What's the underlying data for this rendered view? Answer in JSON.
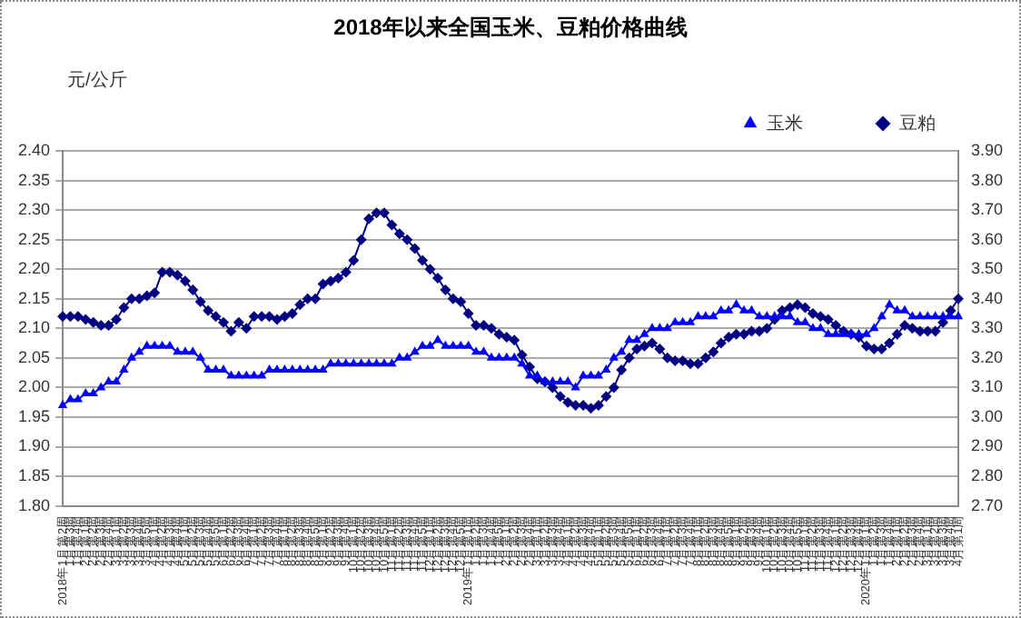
{
  "chart_data": {
    "type": "line",
    "title": "2018年以来全国玉米、豆粕价格曲线",
    "ylabel": "元/公斤",
    "categories": [
      "2018年1月第2周",
      "1月第3周",
      "1月第4周",
      "2月第1周",
      "2月第2周",
      "2月第3周",
      "2月第4周",
      "3月第1周",
      "3月第2周",
      "3月第3周",
      "3月第4周",
      "3月第5周",
      "4月第1周",
      "4月第2周",
      "4月第3周",
      "4月第4周",
      "5月第1周",
      "5月第2周",
      "5月第3周",
      "5月第4周",
      "5月第5周",
      "6月第1周",
      "6月第2周",
      "6月第3周",
      "6月第4周",
      "7月第1周",
      "7月第2周",
      "7月第3周",
      "7月第4周",
      "8月第1周",
      "8月第2周",
      "8月第3周",
      "8月第4周",
      "8月第5周",
      "9月第1周",
      "9月第2周",
      "9月第3周",
      "9月第4周",
      "10月第1周",
      "10月第2周",
      "10月第3周",
      "10月第4周",
      "10月第5周",
      "11月第1周",
      "11月第2周",
      "11月第3周",
      "11月第4周",
      "11月第5周",
      "12月第1周",
      "12月第2周",
      "12月第3周",
      "12月第4周",
      "12月第5周",
      "2019年1月第1周",
      "1月第2周",
      "1月第3周",
      "1月第4周",
      "1月第5周",
      "2月第1周",
      "2月第2周",
      "2月第3周",
      "2月第4周",
      "3月第1周",
      "3月第2周",
      "3月第3周",
      "3月第4周",
      "4月第1周",
      "4月第2周",
      "4月第3周",
      "4月第4周",
      "5月第1周",
      "5月第2周",
      "5月第3周",
      "5月第4周",
      "5月第5周",
      "6月第1周",
      "6月第2周",
      "6月第3周",
      "6月第4周",
      "7月第1周",
      "7月第2周",
      "7月第3周",
      "7月第4周",
      "8月第1周",
      "8月第2周",
      "8月第3周",
      "8月第4周",
      "8月第5周",
      "9月第1周",
      "9月第2周",
      "9月第3周",
      "9月第4周",
      "10月第1周",
      "10月第2周",
      "10月第3周",
      "10月第4周",
      "10月第5周",
      "11月第1周",
      "11月第2周",
      "11月第3周",
      "11月第4周",
      "12月第1周",
      "12月第2周",
      "12月第3周",
      "12月第4周",
      "2020年1月第1周",
      "1月第2周",
      "1月第3周",
      "1月第4周",
      "2月第1周",
      "2月第2周",
      "2月第3周",
      "2月第4周",
      "3月第1周",
      "3月第2周",
      "3月第3周",
      "3月第4周",
      "4月第1周"
    ],
    "series": [
      {
        "name": "玉米",
        "color": "#0000ff",
        "marker": "triangle",
        "values": [
          1.97,
          1.98,
          1.98,
          1.99,
          1.99,
          2.0,
          2.01,
          2.01,
          2.03,
          2.05,
          2.06,
          2.07,
          2.07,
          2.07,
          2.07,
          2.06,
          2.06,
          2.06,
          2.05,
          2.03,
          2.03,
          2.03,
          2.02,
          2.02,
          2.02,
          2.02,
          2.02,
          2.03,
          2.03,
          2.03,
          2.03,
          2.03,
          2.03,
          2.03,
          2.03,
          2.04,
          2.04,
          2.04,
          2.04,
          2.04,
          2.04,
          2.04,
          2.04,
          2.04,
          2.05,
          2.05,
          2.06,
          2.07,
          2.07,
          2.08,
          2.07,
          2.07,
          2.07,
          2.07,
          2.06,
          2.06,
          2.05,
          2.05,
          2.05,
          2.05,
          2.04,
          2.02,
          2.02,
          2.01,
          2.01,
          2.01,
          2.01,
          2.0,
          2.02,
          2.02,
          2.02,
          2.03,
          2.05,
          2.06,
          2.08,
          2.08,
          2.09,
          2.1,
          2.1,
          2.1,
          2.11,
          2.11,
          2.11,
          2.12,
          2.12,
          2.12,
          2.13,
          2.13,
          2.14,
          2.13,
          2.13,
          2.12,
          2.12,
          2.12,
          2.12,
          2.12,
          2.11,
          2.11,
          2.1,
          2.1,
          2.09,
          2.09,
          2.09,
          2.09,
          2.09,
          2.09,
          2.1,
          2.12,
          2.14,
          2.13,
          2.13,
          2.12,
          2.12,
          2.12,
          2.12,
          2.12,
          2.12,
          2.12
        ]
      },
      {
        "name": "豆粕",
        "color": "#000080",
        "marker": "diamond",
        "axis": "y2",
        "values": [
          3.34,
          3.34,
          3.34,
          3.33,
          3.32,
          3.31,
          3.31,
          3.33,
          3.37,
          3.4,
          3.4,
          3.41,
          3.42,
          3.49,
          3.49,
          3.48,
          3.46,
          3.43,
          3.39,
          3.36,
          3.34,
          3.32,
          3.29,
          3.32,
          3.3,
          3.34,
          3.34,
          3.34,
          3.33,
          3.34,
          3.35,
          3.38,
          3.4,
          3.4,
          3.45,
          3.46,
          3.47,
          3.49,
          3.53,
          3.6,
          3.67,
          3.69,
          3.69,
          3.65,
          3.62,
          3.6,
          3.57,
          3.53,
          3.5,
          3.47,
          3.43,
          3.4,
          3.39,
          3.35,
          3.31,
          3.31,
          3.3,
          3.28,
          3.27,
          3.26,
          3.21,
          3.17,
          3.13,
          3.12,
          3.1,
          3.07,
          3.05,
          3.04,
          3.04,
          3.03,
          3.04,
          3.07,
          3.1,
          3.16,
          3.2,
          3.23,
          3.24,
          3.25,
          3.23,
          3.2,
          3.19,
          3.19,
          3.18,
          3.18,
          3.2,
          3.22,
          3.25,
          3.27,
          3.28,
          3.28,
          3.29,
          3.29,
          3.3,
          3.33,
          3.36,
          3.37,
          3.38,
          3.37,
          3.35,
          3.34,
          3.33,
          3.31,
          3.29,
          3.28,
          3.27,
          3.24,
          3.23,
          3.23,
          3.25,
          3.28,
          3.31,
          3.3,
          3.29,
          3.29,
          3.29,
          3.32,
          3.36,
          3.4
        ]
      }
    ],
    "ylim": [
      1.8,
      2.4
    ],
    "yticks": [
      {
        "value": 1.8,
        "label": "1.80"
      },
      {
        "value": 1.85,
        "label": "1.85"
      },
      {
        "value": 1.9,
        "label": "1.90"
      },
      {
        "value": 1.95,
        "label": "1.95"
      },
      {
        "value": 2.0,
        "label": "2.00"
      },
      {
        "value": 2.05,
        "label": "2.05"
      },
      {
        "value": 2.1,
        "label": "2.10"
      },
      {
        "value": 2.15,
        "label": "2.15"
      },
      {
        "value": 2.2,
        "label": "2.20"
      },
      {
        "value": 2.25,
        "label": "2.25"
      },
      {
        "value": 2.3,
        "label": "2.30"
      },
      {
        "value": 2.35,
        "label": "2.35"
      },
      {
        "value": 2.4,
        "label": "2.40"
      }
    ],
    "y2lim": [
      2.7,
      3.9
    ],
    "y2ticks": [
      {
        "value": 2.7,
        "label": "2.70"
      },
      {
        "value": 2.8,
        "label": "2.80"
      },
      {
        "value": 2.9,
        "label": "2.90"
      },
      {
        "value": 3.0,
        "label": "3.00"
      },
      {
        "value": 3.1,
        "label": "3.10"
      },
      {
        "value": 3.2,
        "label": "3.20"
      },
      {
        "value": 3.3,
        "label": "3.30"
      },
      {
        "value": 3.4,
        "label": "3.40"
      },
      {
        "value": 3.5,
        "label": "3.50"
      },
      {
        "value": 3.6,
        "label": "3.60"
      },
      {
        "value": 3.7,
        "label": "3.70"
      },
      {
        "value": 3.8,
        "label": "3.80"
      },
      {
        "value": 3.9,
        "label": "3.90"
      }
    ],
    "grid": "y",
    "legend": "top right",
    "line_style": "solid"
  }
}
